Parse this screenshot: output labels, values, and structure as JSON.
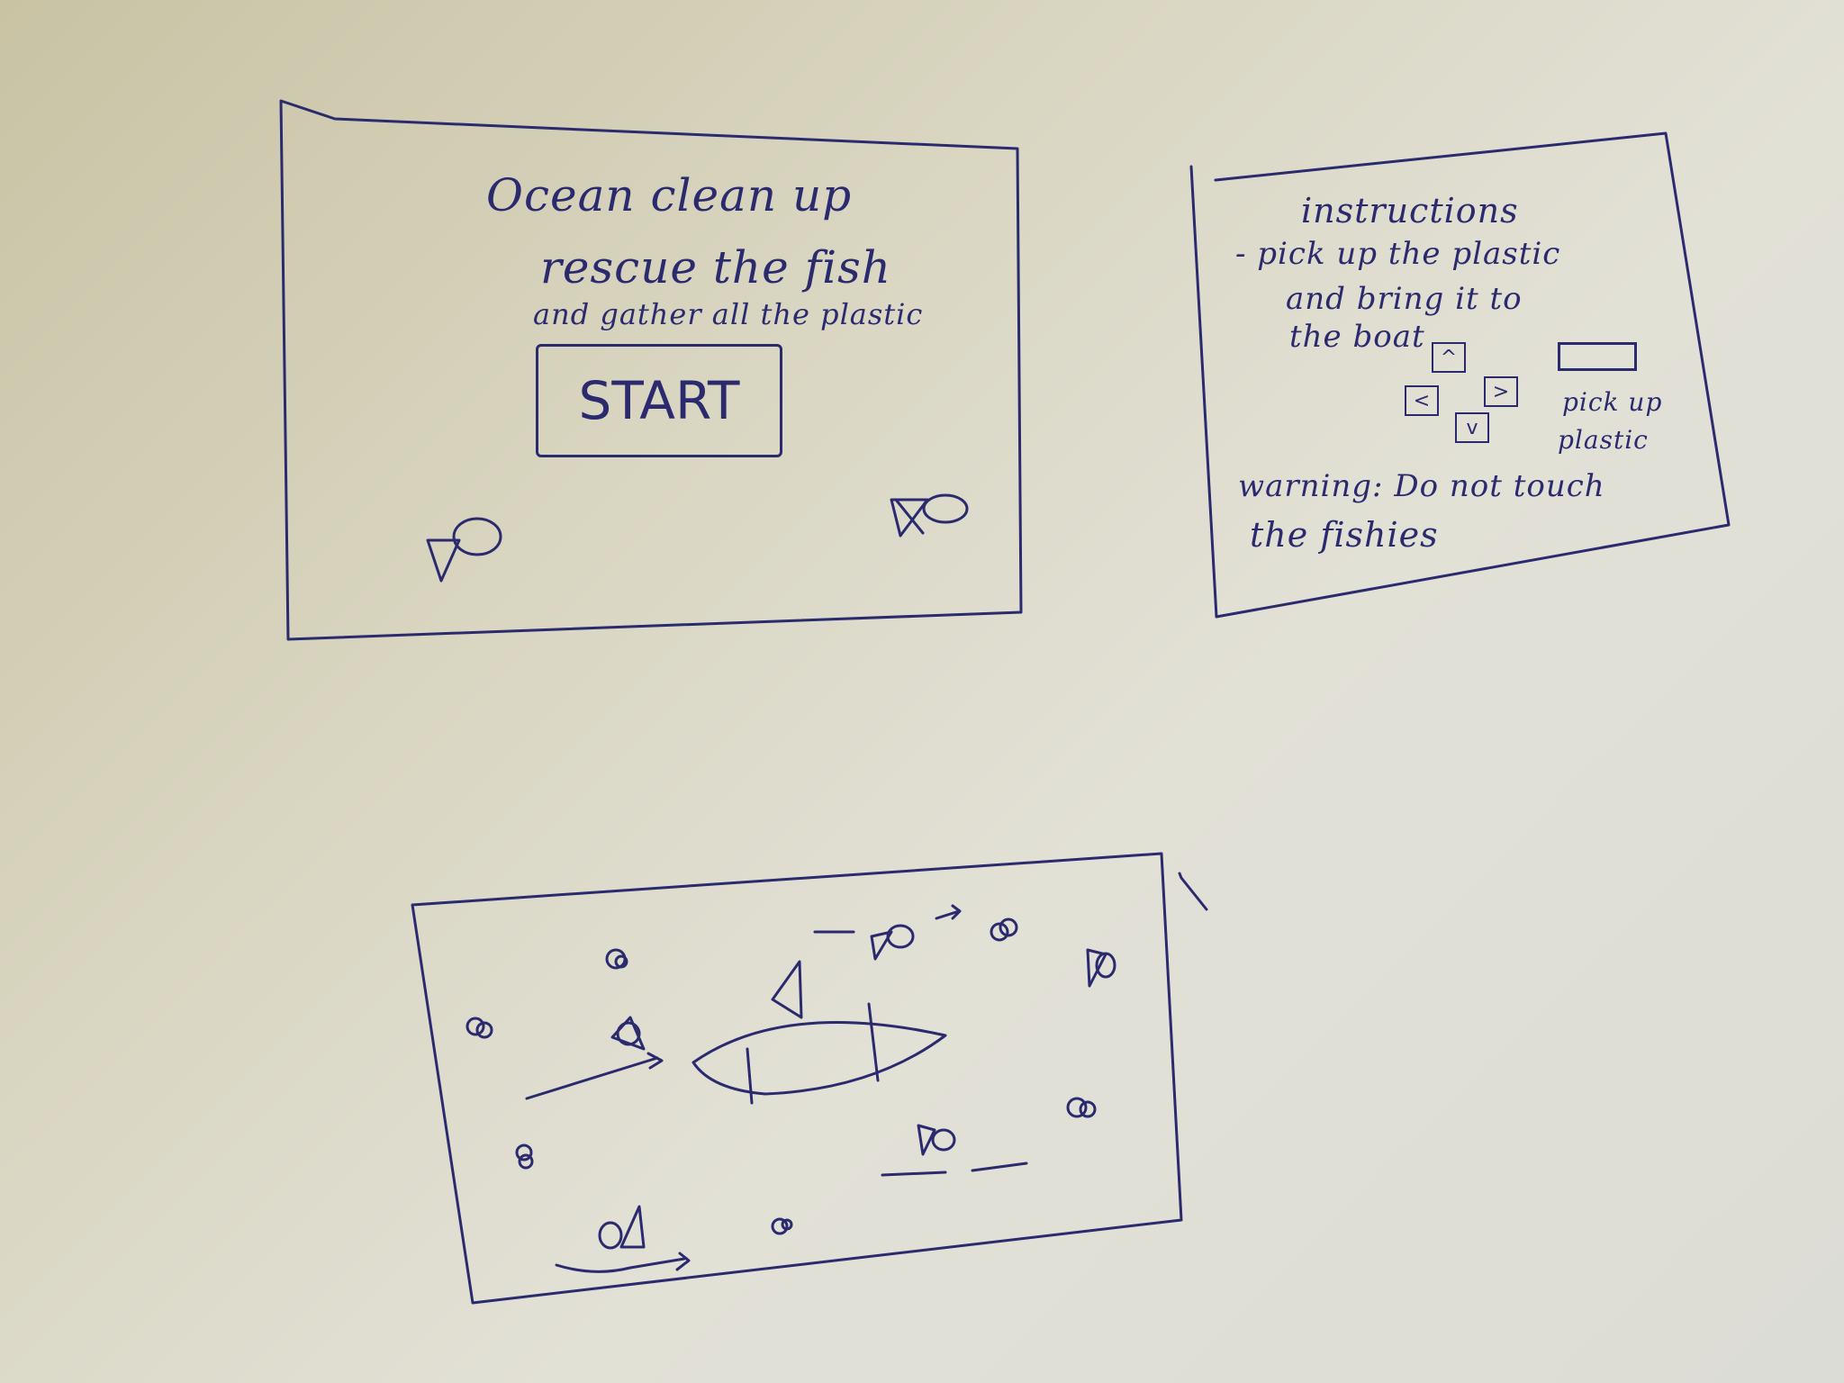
{
  "title_screen": {
    "title": "Ocean clean up",
    "subtitle": "rescue the fish",
    "tagline": "and gather all the plastic",
    "start_label": "START"
  },
  "instructions_screen": {
    "heading": "instructions",
    "line1": "- pick up the plastic",
    "line2": "and bring it to",
    "line3": "the boat",
    "keys": {
      "up": "^",
      "left": "<",
      "right": ">",
      "down": "v"
    },
    "pickup_label_1": "pick up",
    "pickup_label_2": "plastic",
    "warning_1": "warning: Do not touch",
    "warning_2": "the fishies"
  },
  "game_screen": {
    "boat": "boat-icon",
    "fish": "fish-icon",
    "plastic": "plastic-icon"
  }
}
